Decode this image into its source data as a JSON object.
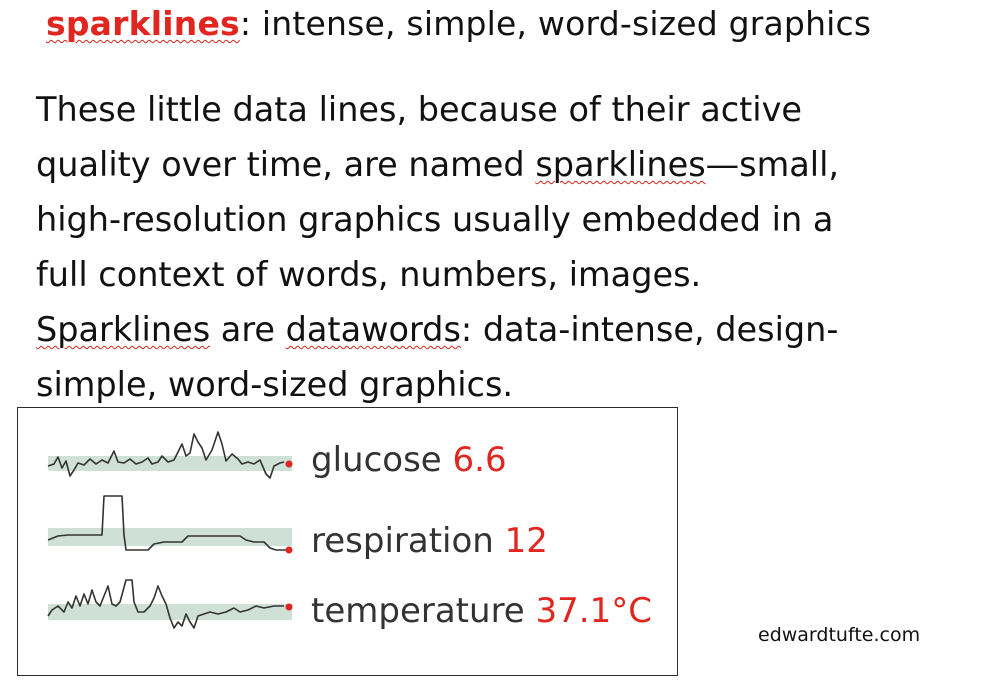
{
  "title": {
    "keyword": "sparklines",
    "rest": ": intense, simple, word-sized graphics"
  },
  "paragraph": {
    "l1": "These little data lines, because of their active",
    "l2_pre": "quality over time, are named ",
    "l2_word": "sparklines",
    "l2_post": "—small,",
    "l3": "high-resolution graphics usually embedded in a",
    "l4": "full context of words, numbers, images.",
    "l5_word1": "Sparklines",
    "l5_mid": " are ",
    "l5_word2": "datawords",
    "l5_post": ": data-intense, design-",
    "l6": "simple, word-sized graphics."
  },
  "sparklines": [
    {
      "label": "glucose",
      "value": "6.6"
    },
    {
      "label": "respiration",
      "value": "12"
    },
    {
      "label": "temperature",
      "value": "37.1°C"
    }
  ],
  "credit": "edwardtufte.com",
  "colors": {
    "accent": "#e0261f",
    "band": "#cfe0d6",
    "line": "#333333"
  }
}
